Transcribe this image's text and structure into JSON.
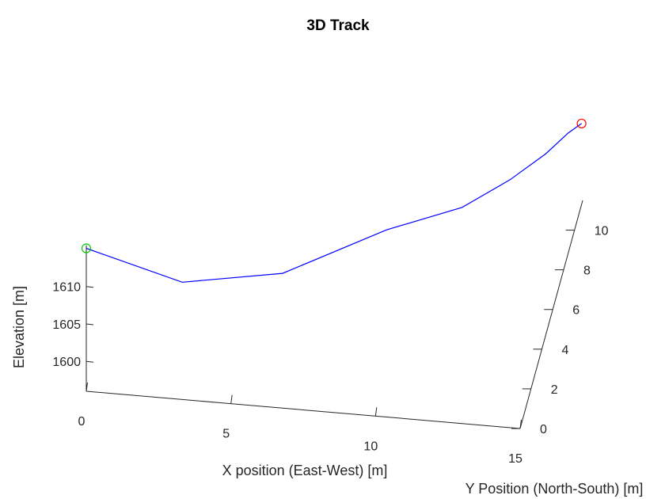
{
  "chart_data": {
    "type": "line",
    "title": "3D Track",
    "xlabel": "X position (East-West) [m]",
    "ylabel": "Y Position (North-South) [m]",
    "zlabel": "Elevation [m]",
    "xlim": [
      0,
      15
    ],
    "ylim": [
      0,
      11.5
    ],
    "zlim": [
      1596,
      1618
    ],
    "x_ticks": [
      0,
      5,
      10,
      15
    ],
    "y_ticks": [
      0,
      2,
      4,
      6,
      8,
      10
    ],
    "z_ticks": [
      1600,
      1605,
      1610
    ],
    "series": [
      {
        "color": "#0000ff",
        "points": [
          {
            "x": 0,
            "y": 0,
            "z": 1615.1
          },
          {
            "x": 3.3,
            "y": 0.1,
            "z": 1611.4
          },
          {
            "x": 6.6,
            "y": 1.0,
            "z": 1611.3
          },
          {
            "x": 9.8,
            "y": 3.1,
            "z": 1612.6
          },
          {
            "x": 12.0,
            "y": 5.3,
            "z": 1610.5
          },
          {
            "x": 13.3,
            "y": 7.2,
            "z": 1609.6
          },
          {
            "x": 14.2,
            "y": 9.0,
            "z": 1608.6
          },
          {
            "x": 14.7,
            "y": 10.4,
            "z": 1607.8
          },
          {
            "x": 15.0,
            "y": 11.3,
            "z": 1606.8
          }
        ]
      }
    ],
    "markers": [
      {
        "name": "start",
        "color": "#00cc00",
        "point_index": 0
      },
      {
        "name": "end",
        "color": "#ff0000",
        "point_index": 8
      }
    ]
  }
}
